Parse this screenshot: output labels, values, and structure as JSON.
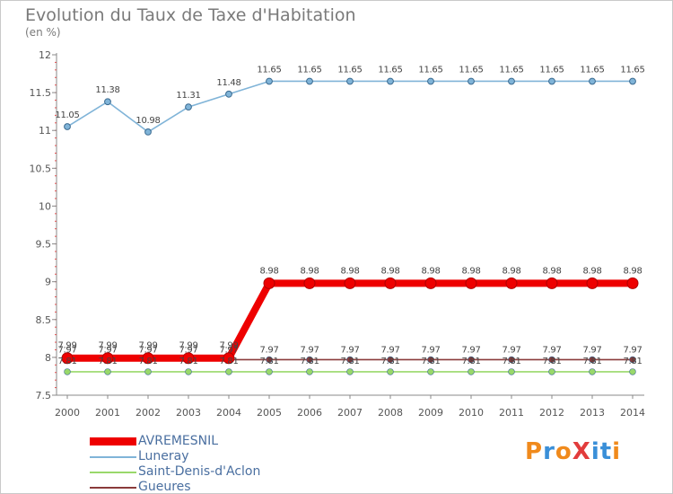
{
  "title": "Evolution du Taux de Taxe d'Habitation",
  "unit": "(en %)",
  "logo": {
    "text": "ProXiti",
    "colors": [
      "#f08a1c",
      "#3a8fd8",
      "#f08a1c",
      "#e23c3c",
      "#3a8fd8",
      "#3a8fd8",
      "#f08a1c"
    ]
  },
  "chart_data": {
    "type": "line",
    "x": [
      2000,
      2001,
      2002,
      2003,
      2004,
      2005,
      2006,
      2007,
      2008,
      2009,
      2010,
      2011,
      2012,
      2013,
      2014
    ],
    "ylim": [
      7.5,
      12
    ],
    "yticks": [
      7.5,
      8,
      8.5,
      9,
      9.5,
      10,
      10.5,
      11,
      11.5,
      12
    ],
    "ytick_labels": [
      "7.5",
      "8",
      "8.5",
      "9",
      "9.5",
      "10",
      "10.5",
      "11",
      "11.5",
      "12"
    ],
    "grid": false,
    "legend": "bottom-left",
    "series": [
      {
        "name": "AVREMESNIL",
        "color": "#ee0000",
        "values": [
          7.99,
          7.99,
          7.99,
          7.99,
          7.99,
          8.98,
          8.98,
          8.98,
          8.98,
          8.98,
          8.98,
          8.98,
          8.98,
          8.98,
          8.98
        ],
        "labels": [
          "7.99",
          "7.99",
          "7.99",
          "7.99",
          "7.99",
          "8.98",
          "8.98",
          "8.98",
          "8.98",
          "8.98",
          "8.98",
          "8.98",
          "8.98",
          "8.98",
          "8.98"
        ]
      },
      {
        "name": "Luneray",
        "color": "#80b4d8",
        "values": [
          11.05,
          11.38,
          10.98,
          11.31,
          11.48,
          11.65,
          11.65,
          11.65,
          11.65,
          11.65,
          11.65,
          11.65,
          11.65,
          11.65,
          11.65
        ],
        "labels": [
          "11.05",
          "11.38",
          "10.98",
          "11.31",
          "11.48",
          "11.65",
          "11.65",
          "11.65",
          "11.65",
          "11.65",
          "11.65",
          "11.65",
          "11.65",
          "11.65",
          "11.65"
        ]
      },
      {
        "name": "Saint-Denis-d'Aclon",
        "color": "#99d86a",
        "values": [
          7.81,
          7.81,
          7.81,
          7.81,
          7.81,
          7.81,
          7.81,
          7.81,
          7.81,
          7.81,
          7.81,
          7.81,
          7.81,
          7.81,
          7.81
        ],
        "labels": [
          "7.81",
          "7.81",
          "7.81",
          "7.81",
          "7.81",
          "7.81",
          "7.81",
          "7.81",
          "7.81",
          "7.81",
          "7.81",
          "7.81",
          "7.81",
          "7.81",
          "7.81"
        ]
      },
      {
        "name": "Gueures",
        "color": "#8a3a3a",
        "values": [
          7.97,
          7.97,
          7.97,
          7.97,
          7.97,
          7.97,
          7.97,
          7.97,
          7.97,
          7.97,
          7.97,
          7.97,
          7.97,
          7.97,
          7.97
        ],
        "labels": [
          "7.97",
          "7.97",
          "7.97",
          "7.97",
          "7.97",
          "7.97",
          "7.97",
          "7.97",
          "7.97",
          "7.97",
          "7.97",
          "7.97",
          "7.97",
          "7.97",
          "7.97"
        ]
      }
    ]
  }
}
